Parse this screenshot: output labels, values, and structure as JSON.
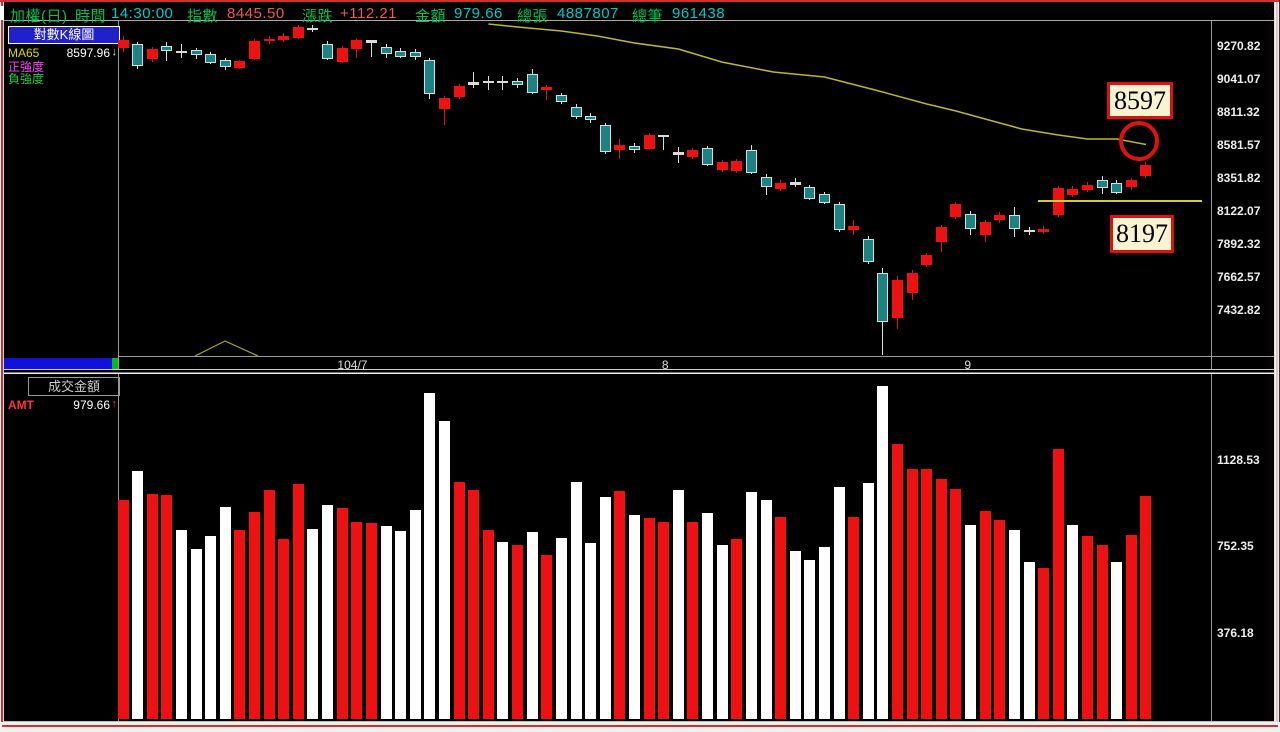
{
  "title_bar": {
    "items": [
      {
        "text": "加權(日)",
        "color": "green"
      },
      {
        "text": "時間",
        "color": "green"
      },
      {
        "text": "14:30:00",
        "color": "cyan"
      },
      {
        "text": "指數",
        "color": "green"
      },
      {
        "text": "8445.50",
        "color": "red"
      },
      {
        "text": "漲跌",
        "color": "green"
      },
      {
        "text": "+112.21",
        "color": "red"
      },
      {
        "text": "金額",
        "color": "green"
      },
      {
        "text": "979.66",
        "color": "cyan"
      },
      {
        "text": "總張",
        "color": "green"
      },
      {
        "text": "4887807",
        "color": "cyan"
      },
      {
        "text": "總筆",
        "color": "green"
      },
      {
        "text": "961438",
        "color": "cyan"
      }
    ]
  },
  "kchart_panel": {
    "sidebar": {
      "title": "對數K線圖",
      "ma_label": "MA65",
      "ma_value": "8597.96",
      "ma_arrow": "↓",
      "pos_strength": "正強度",
      "neg_strength": "負強度"
    },
    "annotations": {
      "upper_box_label": "8597",
      "lower_box_label": "8197",
      "support_line_price": 8197,
      "circle_price": 8597
    }
  },
  "volume_panel": {
    "sidebar": {
      "title": "成交金額",
      "amt_label": "AMT",
      "amt_value": "979.66",
      "amt_arrow": "↑"
    }
  },
  "chart_data": {
    "type": "candlestick+volume",
    "title": "加權指數 對數K線圖 (日)",
    "price_axis_ticks": [
      9270.82,
      9041.07,
      8811.32,
      8581.57,
      8351.82,
      8122.07,
      7892.32,
      7662.57,
      7432.82
    ],
    "volume_axis_ticks": [
      1128.53,
      752.35,
      376.18
    ],
    "x_axis_ticks": [
      {
        "label": "104/7",
        "candle": 16.7
      },
      {
        "label": "8",
        "candle": 38.1
      },
      {
        "label": "9",
        "candle": 58.8
      }
    ],
    "candles_format": [
      "open",
      "high",
      "low",
      "close",
      "body_color",
      "volume",
      "volume_color"
    ],
    "candles": [
      [
        9257,
        9340,
        9229,
        9313,
        "r",
        956,
        "r"
      ],
      [
        9285,
        9299,
        9111,
        9132,
        "t",
        1079,
        "w"
      ],
      [
        9180,
        9264,
        9159,
        9250,
        "r",
        982,
        "r"
      ],
      [
        9271,
        9299,
        9166,
        9236,
        "t",
        978,
        "r"
      ],
      [
        9229,
        9285,
        9187,
        9238,
        "w",
        825,
        "w"
      ],
      [
        9243,
        9257,
        9180,
        9206,
        "t",
        741,
        "w"
      ],
      [
        9217,
        9229,
        9145,
        9155,
        "t",
        799,
        "w"
      ],
      [
        9173,
        9187,
        9104,
        9125,
        "t",
        924,
        "w"
      ],
      [
        9118,
        9173,
        9111,
        9164,
        "r",
        822,
        "r"
      ],
      [
        9178,
        9322,
        9173,
        9303,
        "r",
        901,
        "r"
      ],
      [
        9303,
        9340,
        9285,
        9322,
        "r",
        999,
        "r"
      ],
      [
        9310,
        9361,
        9299,
        9340,
        "r",
        785,
        "r"
      ],
      [
        9326,
        9417,
        9319,
        9403,
        "r",
        1025,
        "r"
      ],
      [
        9394,
        9417,
        9368,
        9385,
        "t",
        828,
        "w"
      ],
      [
        9287,
        9306,
        9173,
        9182,
        "t",
        934,
        "w"
      ],
      [
        9159,
        9271,
        9152,
        9257,
        "r",
        920,
        "r"
      ],
      [
        9248,
        9326,
        9187,
        9310,
        "r",
        857,
        "r"
      ],
      [
        9294,
        9313,
        9194,
        9310,
        "w",
        855,
        "r"
      ],
      [
        9264,
        9285,
        9187,
        9217,
        "t",
        843,
        "w"
      ],
      [
        9234,
        9257,
        9187,
        9194,
        "t",
        818,
        "w"
      ],
      [
        9229,
        9250,
        9173,
        9194,
        "t",
        912,
        "w"
      ],
      [
        9171,
        9187,
        8904,
        8939,
        "t",
        1420,
        "w"
      ],
      [
        8834,
        8923,
        8719,
        8909,
        "r",
        1296,
        "w"
      ],
      [
        8916,
        9006,
        8902,
        8992,
        "r",
        1031,
        "r"
      ],
      [
        8997,
        9090,
        8978,
        9020,
        "w",
        996,
        "r"
      ],
      [
        9013,
        9062,
        8964,
        9024,
        "w",
        825,
        "r"
      ],
      [
        9013,
        9062,
        8964,
        9024,
        "w",
        770,
        "w"
      ],
      [
        9025,
        9048,
        8978,
        8997,
        "t",
        757,
        "r"
      ],
      [
        9078,
        9113,
        8937,
        8946,
        "t",
        814,
        "w"
      ],
      [
        8962,
        8999,
        8893,
        8985,
        "r",
        717,
        "r"
      ],
      [
        8932,
        8944,
        8867,
        8881,
        "t",
        789,
        "w"
      ],
      [
        8846,
        8867,
        8763,
        8776,
        "t",
        1035,
        "w"
      ],
      [
        8783,
        8804,
        8735,
        8753,
        "t",
        768,
        "w"
      ],
      [
        8719,
        8735,
        8519,
        8533,
        "t",
        968,
        "w"
      ],
      [
        8545,
        8625,
        8486,
        8584,
        "r",
        992,
        "r"
      ],
      [
        8575,
        8595,
        8526,
        8545,
        "t",
        891,
        "w"
      ],
      [
        8556,
        8665,
        8547,
        8649,
        "r",
        876,
        "r"
      ],
      [
        8637,
        8653,
        8545,
        8653,
        "w",
        857,
        "r"
      ],
      [
        8510,
        8568,
        8456,
        8533,
        "w",
        999,
        "w"
      ],
      [
        8498,
        8561,
        8484,
        8545,
        "r",
        857,
        "r"
      ],
      [
        8561,
        8575,
        8435,
        8444,
        "t",
        898,
        "w"
      ],
      [
        8405,
        8477,
        8394,
        8463,
        "r",
        757,
        "w"
      ],
      [
        8398,
        8484,
        8387,
        8468,
        "r",
        785,
        "r"
      ],
      [
        8545,
        8579,
        8380,
        8389,
        "t",
        988,
        "w"
      ],
      [
        8359,
        8380,
        8231,
        8289,
        "t",
        956,
        "w"
      ],
      [
        8277,
        8338,
        8261,
        8319,
        "r",
        881,
        "r"
      ],
      [
        8301,
        8352,
        8289,
        8324,
        "w",
        731,
        "w"
      ],
      [
        8289,
        8303,
        8199,
        8208,
        "t",
        695,
        "w"
      ],
      [
        8243,
        8254,
        8171,
        8180,
        "t",
        748,
        "w"
      ],
      [
        8173,
        8185,
        7976,
        7988,
        "t",
        1011,
        "w"
      ],
      [
        7988,
        8057,
        7953,
        8018,
        "r",
        879,
        "r"
      ],
      [
        7929,
        7948,
        7753,
        7767,
        "t",
        1028,
        "w"
      ],
      [
        7692,
        7725,
        7119,
        7349,
        "t",
        1452,
        "w"
      ],
      [
        7375,
        7669,
        7302,
        7641,
        "r",
        1199,
        "r"
      ],
      [
        7551,
        7711,
        7502,
        7690,
        "r",
        1089,
        "r"
      ],
      [
        7744,
        7829,
        7732,
        7813,
        "r",
        1089,
        "r"
      ],
      [
        7906,
        8025,
        7836,
        8011,
        "r",
        1047,
        "r"
      ],
      [
        8080,
        8185,
        8066,
        8171,
        "r",
        1002,
        "r"
      ],
      [
        8103,
        8122,
        7955,
        7999,
        "t",
        847,
        "w"
      ],
      [
        7957,
        8059,
        7906,
        8046,
        "r",
        905,
        "r"
      ],
      [
        8057,
        8115,
        8039,
        8092,
        "r",
        866,
        "r"
      ],
      [
        8096,
        8150,
        7941,
        7999,
        "t",
        822,
        "w"
      ],
      [
        7976,
        8011,
        7953,
        7990,
        "w",
        683,
        "w"
      ],
      [
        7976,
        8018,
        7962,
        7999,
        "r",
        659,
        "r"
      ],
      [
        8092,
        8296,
        8080,
        8282,
        "r",
        1176,
        "r"
      ],
      [
        8231,
        8296,
        8220,
        8277,
        "r",
        847,
        "w"
      ],
      [
        8266,
        8324,
        8254,
        8305,
        "r",
        796,
        "r"
      ],
      [
        8336,
        8366,
        8240,
        8282,
        "t",
        757,
        "r"
      ],
      [
        8319,
        8338,
        8240,
        8249,
        "t",
        683,
        "w"
      ],
      [
        8289,
        8352,
        8268,
        8336,
        "r",
        804,
        "r"
      ],
      [
        8366,
        8463,
        8352,
        8445.5,
        "r",
        970,
        "r"
      ]
    ],
    "ma65_line": [
      [
        26,
        9424
      ],
      [
        28,
        9403
      ],
      [
        31,
        9375
      ],
      [
        33.5,
        9340
      ],
      [
        36,
        9292
      ],
      [
        39,
        9250
      ],
      [
        42,
        9159
      ],
      [
        45.5,
        9090
      ],
      [
        49,
        9055
      ],
      [
        52.5,
        8964
      ],
      [
        56,
        8867
      ],
      [
        58,
        8818
      ],
      [
        60.5,
        8749
      ],
      [
        62.5,
        8693
      ],
      [
        65,
        8651
      ],
      [
        67,
        8623
      ],
      [
        69,
        8623
      ],
      [
        71,
        8585
      ]
    ],
    "ma65_color": "#b8b832",
    "up_color": "#ee1111",
    "down_color": "#1f8282",
    "volume_up_color": "#ee1111",
    "volume_down_color": "#ffffff"
  }
}
